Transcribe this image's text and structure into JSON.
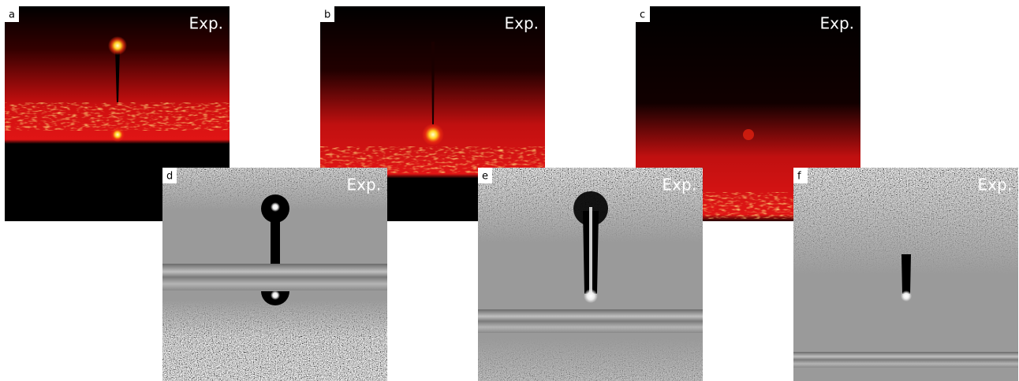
{
  "panels": [
    {
      "label": "a",
      "tag": "Exp."
    },
    {
      "label": "b",
      "tag": "Exp."
    },
    {
      "label": "c",
      "tag": "Exp."
    },
    {
      "label": "d",
      "tag": "Exp."
    },
    {
      "label": "e",
      "tag": "Exp."
    },
    {
      "label": "f",
      "tag": "Exp."
    }
  ]
}
